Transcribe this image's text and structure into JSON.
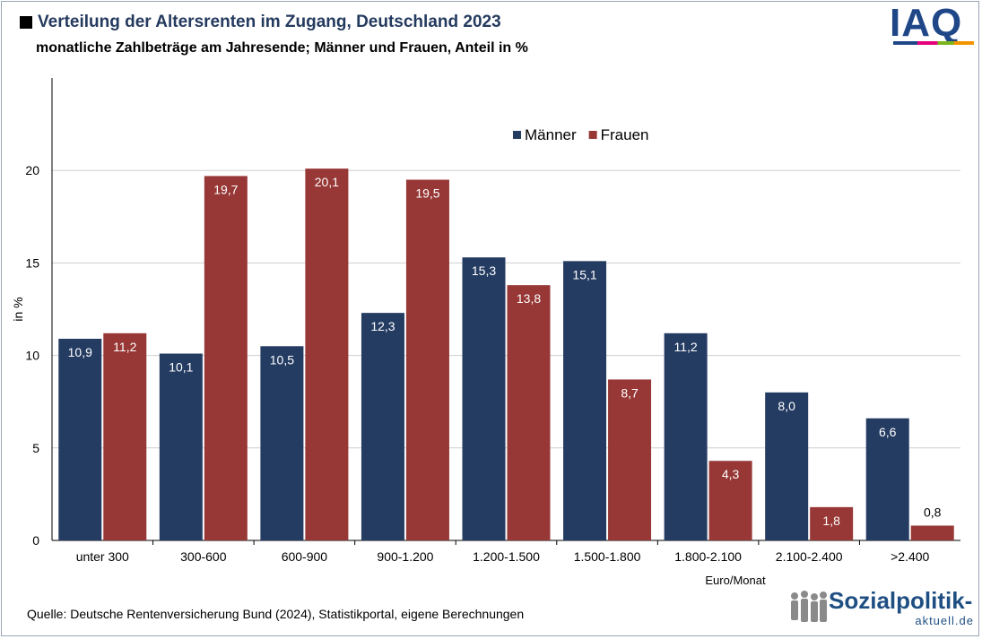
{
  "header": {
    "title": "Verteilung der Altersrenten im Zugang, Deutschland 2023",
    "subtitle": "monatliche Zahlbeträge am Jahresende; Männer und Frauen, Anteil in %"
  },
  "logos": {
    "iaq": "IAQ",
    "sozialpolitik_main": "Sozialpolitik-",
    "sozialpolitik_sub": "aktuell.de"
  },
  "footer": {
    "source": "Quelle: Deutsche Rentenversicherung Bund (2024), Statistikportal, eigene Berechnungen"
  },
  "chart_data": {
    "type": "bar",
    "categories": [
      "unter 300",
      "300-600",
      "600-900",
      "900-1.200",
      "1.200-1.500",
      "1.500-1.800",
      "1.800-2.100",
      "2.100-2.400",
      ">2.400"
    ],
    "series": [
      {
        "name": "Männer",
        "values": [
          10.9,
          10.1,
          10.5,
          12.3,
          15.3,
          15.1,
          11.2,
          8.0,
          6.6
        ],
        "labels": [
          "10,9",
          "10,1",
          "10,5",
          "12,3",
          "15,3",
          "15,1",
          "11,2",
          "8,0",
          "6,6"
        ],
        "color": "#253c62"
      },
      {
        "name": "Frauen",
        "values": [
          11.2,
          19.7,
          20.1,
          19.5,
          13.8,
          8.7,
          4.3,
          1.8,
          0.8
        ],
        "labels": [
          "11,2",
          "19,7",
          "20,1",
          "19,5",
          "13,8",
          "8,7",
          "4,3",
          "1,8",
          "0,8"
        ],
        "color": "#973836"
      }
    ],
    "xlabel": "Euro/Monat",
    "ylabel": "in %",
    "ylim": [
      0,
      25
    ],
    "yticks": [
      "0",
      "5",
      "10",
      "15",
      "20"
    ],
    "grid": true,
    "legend_position": "top-center"
  }
}
